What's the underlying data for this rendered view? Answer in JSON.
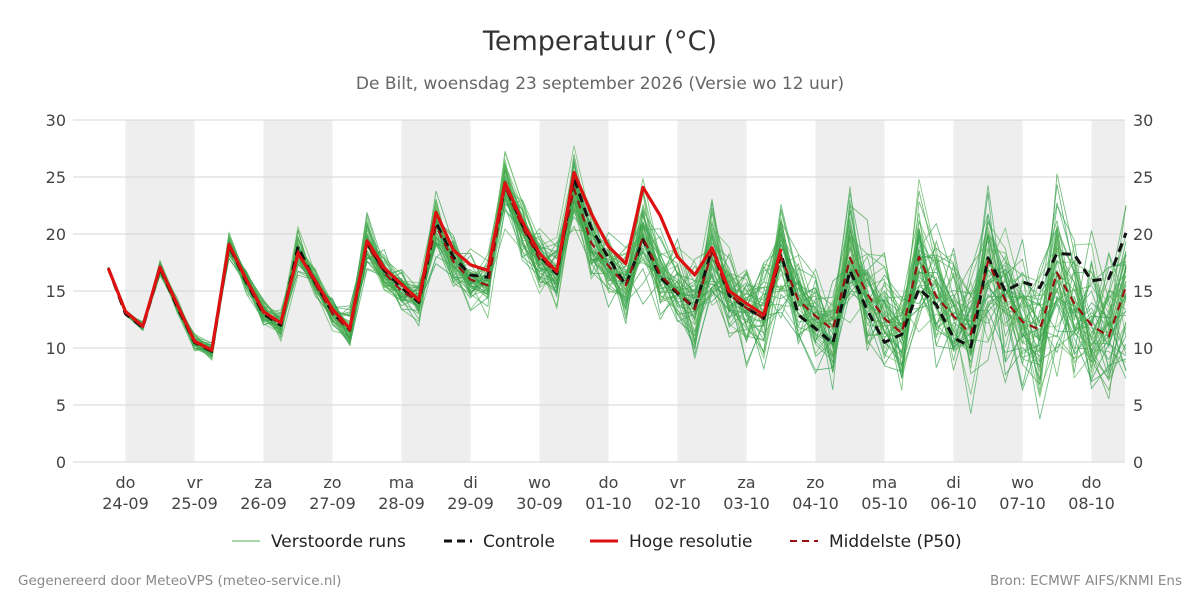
{
  "chart_data": {
    "type": "line",
    "title": "Temperatuur (°C)",
    "subtitle": "De Bilt, woensdag 23 september 2026 (Versie wo 12 uur)",
    "ylim": [
      0,
      30
    ],
    "yticks": [
      0,
      5,
      10,
      15,
      20,
      25,
      30
    ],
    "grid": true,
    "weekend_shading": "grey bands alternate days",
    "x_unit": "days since 2026-09-24 00:00",
    "xlim": [
      -0.25,
      14.5
    ],
    "day_labels": [
      {
        "day": "do",
        "date": "24-09"
      },
      {
        "day": "vr",
        "date": "25-09"
      },
      {
        "day": "za",
        "date": "26-09"
      },
      {
        "day": "zo",
        "date": "27-09"
      },
      {
        "day": "ma",
        "date": "28-09"
      },
      {
        "day": "di",
        "date": "29-09"
      },
      {
        "day": "wo",
        "date": "30-09"
      },
      {
        "day": "do",
        "date": "01-10"
      },
      {
        "day": "vr",
        "date": "02-10"
      },
      {
        "day": "za",
        "date": "03-10"
      },
      {
        "day": "zo",
        "date": "04-10"
      },
      {
        "day": "ma",
        "date": "05-10"
      },
      {
        "day": "di",
        "date": "06-10"
      },
      {
        "day": "wo",
        "date": "07-10"
      },
      {
        "day": "do",
        "date": "08-10"
      }
    ],
    "legend": {
      "placement": "bottom",
      "entries": [
        {
          "label": "Verstoorde runs",
          "color": "#4caf50",
          "style": "thin"
        },
        {
          "label": "Controle",
          "color": "#111111",
          "style": "dashed"
        },
        {
          "label": "Hoge resolutie",
          "color": "#dd1111",
          "style": "solid"
        },
        {
          "label": "Middelste (P50)",
          "color": "#991111",
          "style": "dashed"
        }
      ]
    },
    "series": [
      {
        "name": "Hoge resolutie",
        "x": [
          -0.25,
          0,
          0.25,
          0.5,
          0.75,
          1.0,
          1.25,
          1.5,
          1.75,
          2.0,
          2.25,
          2.5,
          2.75,
          3.0,
          3.25,
          3.5,
          3.75,
          4.0,
          4.25,
          4.5,
          4.75,
          5.0,
          5.25,
          5.5,
          5.75,
          6.0,
          6.25,
          6.5,
          6.75,
          7.0,
          7.25,
          7.5,
          7.75,
          8.0,
          8.25,
          8.5,
          8.75,
          9.0,
          9.25,
          9.5
        ],
        "y": [
          17.0,
          13.2,
          11.9,
          17.1,
          13.8,
          10.6,
          9.8,
          19.1,
          16.0,
          13.2,
          12.2,
          18.3,
          15.9,
          13.4,
          11.7,
          19.4,
          17.0,
          15.6,
          14.2,
          21.9,
          18.6,
          17.3,
          16.8,
          24.5,
          21.1,
          18.3,
          16.7,
          25.4,
          21.8,
          18.9,
          17.4,
          24.1,
          21.6,
          18.0,
          16.4,
          18.8,
          15.0,
          13.9,
          12.9,
          18.7
        ]
      },
      {
        "name": "Controle",
        "x": [
          -0.25,
          0,
          0.25,
          0.5,
          0.75,
          1.0,
          1.25,
          1.5,
          1.75,
          2.0,
          2.25,
          2.5,
          2.75,
          3.0,
          3.25,
          3.5,
          3.75,
          4.0,
          4.25,
          4.5,
          4.75,
          5.0,
          5.25,
          5.5,
          5.75,
          6.0,
          6.25,
          6.5,
          6.75,
          7.0,
          7.25,
          7.5,
          7.75,
          8.0,
          8.25,
          8.5,
          8.75,
          9.0,
          9.25,
          9.5,
          9.75,
          10.0,
          10.25,
          10.5,
          10.75,
          11.0,
          11.25,
          11.5,
          11.75,
          12.0,
          12.25,
          12.5,
          12.75,
          13.0,
          13.25,
          13.5,
          13.75,
          14.0,
          14.25,
          14.5
        ],
        "y": [
          17.0,
          13.0,
          11.8,
          17.0,
          13.6,
          10.5,
          9.7,
          19.0,
          15.8,
          13.0,
          12.0,
          18.9,
          15.7,
          13.1,
          11.6,
          19.2,
          16.8,
          15.3,
          14.0,
          21.0,
          18.0,
          16.4,
          16.2,
          24.3,
          20.8,
          18.1,
          16.5,
          24.9,
          20.5,
          17.9,
          15.5,
          19.5,
          16.2,
          14.8,
          13.5,
          18.7,
          14.6,
          13.5,
          12.6,
          18.3,
          12.9,
          11.7,
          10.4,
          16.8,
          13.3,
          10.5,
          11.2,
          15.2,
          13.8,
          10.9,
          10.1,
          17.9,
          15.0,
          15.8,
          15.3,
          18.3,
          18.2,
          15.9,
          16.1,
          20.1
        ]
      },
      {
        "name": "Middelste (P50)",
        "x": [
          -0.25,
          0,
          0.25,
          0.5,
          0.75,
          1.0,
          1.25,
          1.5,
          1.75,
          2.0,
          2.25,
          2.5,
          2.75,
          3.0,
          3.25,
          3.5,
          3.75,
          4.0,
          4.25,
          4.5,
          4.75,
          5.0,
          5.25,
          5.5,
          5.75,
          6.0,
          6.25,
          6.5,
          6.75,
          7.0,
          7.25,
          7.5,
          7.75,
          8.0,
          8.25,
          8.5,
          8.75,
          9.0,
          9.25,
          9.5,
          9.75,
          10.0,
          10.25,
          10.5,
          10.75,
          11.0,
          11.25,
          11.5,
          11.75,
          12.0,
          12.25,
          12.5,
          12.75,
          13.0,
          13.25,
          13.5,
          13.75,
          14.0,
          14.25,
          14.5
        ],
        "y": [
          17.0,
          13.1,
          11.9,
          17.0,
          13.7,
          10.5,
          9.8,
          19.0,
          15.9,
          13.1,
          12.1,
          18.5,
          15.6,
          13.0,
          11.5,
          19.1,
          16.6,
          15.0,
          14.1,
          20.7,
          17.6,
          16.0,
          15.5,
          24.2,
          20.6,
          17.8,
          16.7,
          24.0,
          19.2,
          17.2,
          15.5,
          19.7,
          16.4,
          14.9,
          13.4,
          18.4,
          14.7,
          13.5,
          12.6,
          18.0,
          14.2,
          12.8,
          11.6,
          17.9,
          14.7,
          12.6,
          11.3,
          18.0,
          14.5,
          12.8,
          11.2,
          17.6,
          14.2,
          12.3,
          11.6,
          16.6,
          13.9,
          12.0,
          11.0,
          15.4
        ]
      }
    ]
  },
  "footer": {
    "left": "Gegenereerd door MeteoVPS (meteo-service.nl)",
    "right": "Bron: ECMWF AIFS/KNMI Ens"
  }
}
